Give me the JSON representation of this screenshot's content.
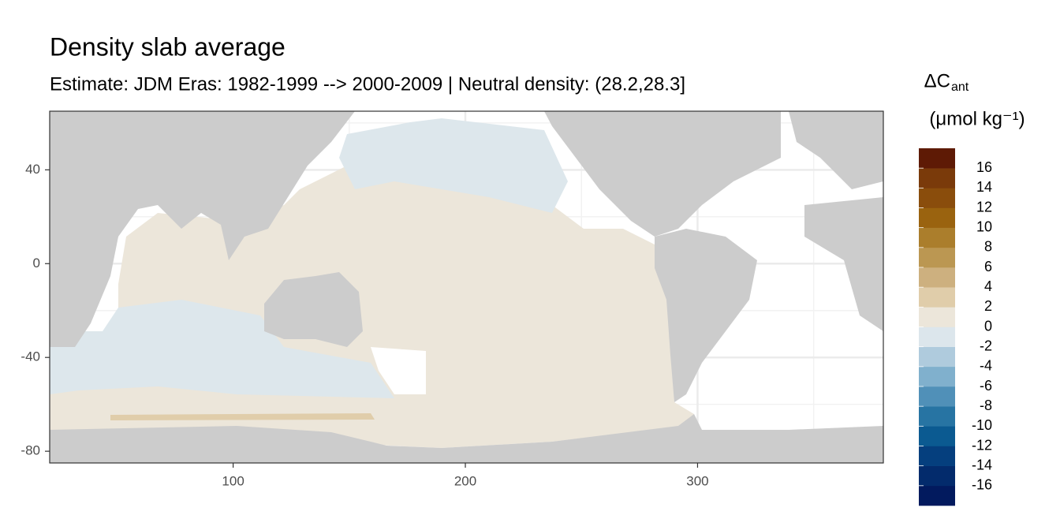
{
  "chart_data": {
    "type": "map",
    "title": "Density slab average",
    "subtitle": "Estimate: JDM Eras: 1982-1999 --> 2000-2009 | Neutral density: (28.2,28.3]",
    "legend_title": "ΔC",
    "legend_subscript": "ant",
    "legend_unit": "(μmol kg⁻¹)",
    "xlim": [
      21,
      380
    ],
    "ylim": [
      -85,
      65
    ],
    "xticks": [
      100,
      200,
      300
    ],
    "yticks": [
      -80,
      -40,
      0,
      40
    ],
    "minor_xticks": [
      150,
      250,
      350
    ],
    "minor_yticks": [
      -60,
      -20,
      20,
      60
    ],
    "grid": true,
    "colorscale": {
      "breaks": [
        -16,
        -14,
        -12,
        -10,
        -8,
        -6,
        -4,
        -2,
        0,
        2,
        4,
        6,
        8,
        10,
        12,
        14,
        16
      ],
      "colors": [
        "#021a5e",
        "#032b6c",
        "#053f7e",
        "#0b5a91",
        "#2774a3",
        "#5090b8",
        "#80b0cd",
        "#afcbdd",
        "#dce6ec",
        "#ece6da",
        "#e0cdaa",
        "#cdb07f",
        "#bb9752",
        "#ab7e2c",
        "#9a630f",
        "#8a4d0c",
        "#7a3a0a",
        "#5e1a05"
      ]
    }
  }
}
